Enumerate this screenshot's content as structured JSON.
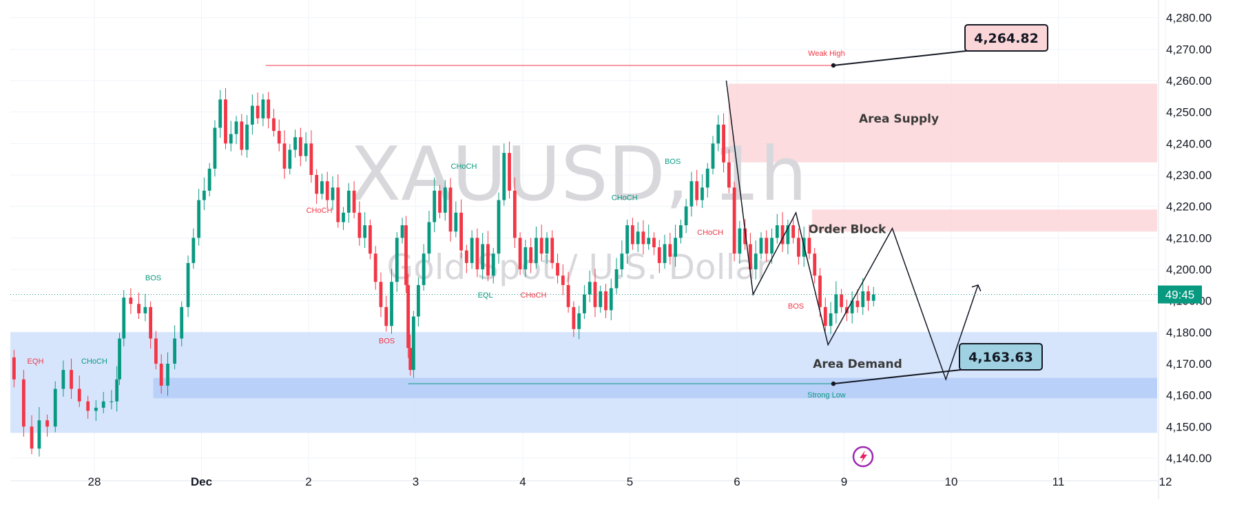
{
  "chart_data": {
    "type": "candlestick",
    "symbol": "XAUUSD, 1h",
    "subtitle": "Gold Spot / U.S. Dollar",
    "price_axis": {
      "ticks": [
        "4,280.00",
        "4,270.00",
        "4,260.00",
        "4,250.00",
        "4,240.00",
        "4,230.00",
        "4,220.00",
        "4,210.00",
        "4,200.00",
        "4,190.00",
        "4,180.00",
        "4,170.00",
        "4,160.00",
        "4,150.00",
        "4,140.00"
      ],
      "ylim": [
        4135,
        4285
      ]
    },
    "time_axis": {
      "ticks": [
        "28",
        "Dec",
        "2",
        "3",
        "4",
        "5",
        "6",
        "9",
        "10",
        "11",
        "12"
      ],
      "xlim": [
        -0.8,
        9.95
      ]
    },
    "current_price": {
      "value": 4192.0,
      "label": "49:45",
      "color": "#089981"
    },
    "candles_anchor_path": [
      [
        -0.8,
        4172
      ],
      [
        -0.7,
        4165
      ],
      [
        -0.62,
        4150
      ],
      [
        -0.55,
        4143
      ],
      [
        -0.48,
        4152
      ],
      [
        -0.4,
        4150
      ],
      [
        -0.33,
        4162
      ],
      [
        -0.25,
        4168
      ],
      [
        -0.18,
        4162
      ],
      [
        -0.1,
        4158
      ],
      [
        -0.02,
        4155
      ],
      [
        0.05,
        4156
      ],
      [
        0.12,
        4158
      ],
      [
        0.2,
        4158
      ],
      [
        0.22,
        4165
      ],
      [
        0.25,
        4178
      ],
      [
        0.3,
        4191
      ],
      [
        0.38,
        4189
      ],
      [
        0.45,
        4186
      ],
      [
        0.5,
        4188
      ],
      [
        0.55,
        4178
      ],
      [
        0.6,
        4170
      ],
      [
        0.65,
        4163
      ],
      [
        0.72,
        4170
      ],
      [
        0.78,
        4178
      ],
      [
        0.85,
        4188
      ],
      [
        0.9,
        4202
      ],
      [
        0.95,
        4210
      ],
      [
        1.0,
        4222
      ],
      [
        1.05,
        4225
      ],
      [
        1.1,
        4232
      ],
      [
        1.15,
        4245
      ],
      [
        1.2,
        4254
      ],
      [
        1.25,
        4240
      ],
      [
        1.3,
        4243
      ],
      [
        1.35,
        4247
      ],
      [
        1.4,
        4238
      ],
      [
        1.45,
        4246
      ],
      [
        1.5,
        4252
      ],
      [
        1.55,
        4248
      ],
      [
        1.6,
        4254
      ],
      [
        1.65,
        4248
      ],
      [
        1.7,
        4244
      ],
      [
        1.75,
        4240
      ],
      [
        1.8,
        4232
      ],
      [
        1.85,
        4238
      ],
      [
        1.9,
        4242
      ],
      [
        1.95,
        4236
      ],
      [
        2.0,
        4240
      ],
      [
        2.05,
        4230
      ],
      [
        2.1,
        4224
      ],
      [
        2.15,
        4228
      ],
      [
        2.2,
        4222
      ],
      [
        2.25,
        4226
      ],
      [
        2.3,
        4215
      ],
      [
        2.35,
        4218
      ],
      [
        2.4,
        4225
      ],
      [
        2.45,
        4218
      ],
      [
        2.5,
        4210
      ],
      [
        2.55,
        4214
      ],
      [
        2.6,
        4205
      ],
      [
        2.65,
        4196
      ],
      [
        2.7,
        4188
      ],
      [
        2.75,
        4182
      ],
      [
        2.8,
        4196
      ],
      [
        2.85,
        4210
      ],
      [
        2.9,
        4214
      ],
      [
        2.92,
        4195
      ],
      [
        2.94,
        4175
      ],
      [
        2.96,
        4168
      ],
      [
        3.0,
        4185
      ],
      [
        3.05,
        4195
      ],
      [
        3.1,
        4205
      ],
      [
        3.15,
        4215
      ],
      [
        3.2,
        4225
      ],
      [
        3.25,
        4218
      ],
      [
        3.3,
        4226
      ],
      [
        3.35,
        4212
      ],
      [
        3.4,
        4218
      ],
      [
        3.45,
        4206
      ],
      [
        3.5,
        4202
      ],
      [
        3.55,
        4210
      ],
      [
        3.6,
        4200
      ],
      [
        3.65,
        4208
      ],
      [
        3.7,
        4198
      ],
      [
        3.75,
        4205
      ],
      [
        3.8,
        4222
      ],
      [
        3.85,
        4237
      ],
      [
        3.9,
        4225
      ],
      [
        3.95,
        4210
      ],
      [
        4.0,
        4200
      ],
      [
        4.05,
        4207
      ],
      [
        4.1,
        4202
      ],
      [
        4.15,
        4210
      ],
      [
        4.2,
        4205
      ],
      [
        4.25,
        4210
      ],
      [
        4.3,
        4202
      ],
      [
        4.35,
        4198
      ],
      [
        4.4,
        4195
      ],
      [
        4.45,
        4188
      ],
      [
        4.5,
        4181
      ],
      [
        4.55,
        4186
      ],
      [
        4.6,
        4192
      ],
      [
        4.65,
        4196
      ],
      [
        4.7,
        4188
      ],
      [
        4.75,
        4193
      ],
      [
        4.8,
        4187
      ],
      [
        4.85,
        4194
      ],
      [
        4.9,
        4200
      ],
      [
        4.95,
        4205
      ],
      [
        5.0,
        4214
      ],
      [
        5.05,
        4208
      ],
      [
        5.1,
        4212
      ],
      [
        5.15,
        4208
      ],
      [
        5.2,
        4210
      ],
      [
        5.25,
        4207
      ],
      [
        5.3,
        4202
      ],
      [
        5.35,
        4208
      ],
      [
        5.4,
        4204
      ],
      [
        5.45,
        4210
      ],
      [
        5.5,
        4214
      ],
      [
        5.55,
        4220
      ],
      [
        5.6,
        4228
      ],
      [
        5.65,
        4222
      ],
      [
        5.7,
        4226
      ],
      [
        5.75,
        4232
      ],
      [
        5.8,
        4240
      ],
      [
        5.85,
        4246
      ],
      [
        5.9,
        4234
      ],
      [
        5.95,
        4226
      ],
      [
        6.0,
        4205
      ],
      [
        6.05,
        4213
      ],
      [
        6.1,
        4208
      ],
      [
        6.15,
        4200
      ],
      [
        6.2,
        4205
      ],
      [
        6.25,
        4210
      ],
      [
        6.3,
        4205
      ],
      [
        6.35,
        4210
      ],
      [
        6.4,
        4214
      ],
      [
        6.45,
        4208
      ],
      [
        6.5,
        4214
      ],
      [
        6.55,
        4210
      ],
      [
        6.6,
        4204
      ],
      [
        6.65,
        4210
      ],
      [
        6.7,
        4205
      ],
      [
        6.75,
        4198
      ],
      [
        6.8,
        4188
      ],
      [
        6.85,
        4182
      ],
      [
        6.9,
        4186
      ],
      [
        6.95,
        4192
      ],
      [
        7.0,
        4188
      ],
      [
        7.05,
        4186
      ],
      [
        7.1,
        4190
      ],
      [
        7.15,
        4188
      ],
      [
        7.2,
        4193
      ],
      [
        7.25,
        4190
      ],
      [
        7.3,
        4192
      ]
    ],
    "zones": [
      {
        "name": "Area Supply",
        "top": 4259,
        "bottom": 4234,
        "color": "#fbd6d8"
      },
      {
        "name": "Order Block",
        "top": 4219,
        "bottom": 4212,
        "color": "#fbd6d8"
      },
      {
        "name": "Area Demand",
        "top": 4180,
        "bottom": 4148,
        "color": "#cfe0fb"
      },
      {
        "name": "",
        "top": 4165.5,
        "bottom": 4159,
        "color": "#b4cdf8"
      }
    ],
    "levels": [
      {
        "label": "Weak High",
        "value": 4264.82,
        "x_from": 1.6,
        "x_to": 6.9,
        "color": "#f23645"
      },
      {
        "label": "Strong Low",
        "value": 4163.63,
        "x_from": 2.93,
        "x_to": 6.9,
        "color": "#089981"
      }
    ],
    "callouts": [
      {
        "text": "4,264.82",
        "style": "pink",
        "at_x": 6.9,
        "at_y": 4264.82
      },
      {
        "text": "4,163.63",
        "style": "blue",
        "at_x": 6.9,
        "at_y": 4163.63
      }
    ],
    "structure_labels": [
      {
        "text": "EQH",
        "x": -0.55,
        "y": 4170,
        "color": "#f23645"
      },
      {
        "text": "CHoCH",
        "x": 0.0,
        "y": 4170,
        "color": "#089981"
      },
      {
        "text": "BOS",
        "x": 0.55,
        "y": 4196.5,
        "color": "#089981"
      },
      {
        "text": "CHoCH",
        "x": 2.1,
        "y": 4218,
        "color": "#f23645"
      },
      {
        "text": "BOS",
        "x": 2.73,
        "y": 4176.5,
        "color": "#f23645"
      },
      {
        "text": "CHoCH",
        "x": 3.45,
        "y": 4232,
        "color": "#089981"
      },
      {
        "text": "EQL",
        "x": 3.65,
        "y": 4191,
        "color": "#089981"
      },
      {
        "text": "CHoCH",
        "x": 4.1,
        "y": 4191,
        "color": "#f23645"
      },
      {
        "text": "CHoCH",
        "x": 4.95,
        "y": 4222,
        "color": "#089981"
      },
      {
        "text": "BOS",
        "x": 5.4,
        "y": 4233.5,
        "color": "#089981"
      },
      {
        "text": "CHoCH",
        "x": 5.75,
        "y": 4211,
        "color": "#f23645"
      },
      {
        "text": "BOS",
        "x": 6.55,
        "y": 4187.5,
        "color": "#f23645"
      }
    ],
    "projection_path": [
      [
        5.9,
        4260
      ],
      [
        6.15,
        4192
      ],
      [
        6.55,
        4218
      ],
      [
        6.85,
        4176
      ],
      [
        7.45,
        4213
      ],
      [
        7.95,
        4165
      ],
      [
        8.25,
        4195
      ]
    ],
    "grid": true,
    "icons": [
      "lightning-icon"
    ]
  },
  "colors": {
    "bull": "#089981",
    "bear": "#f23645",
    "grid": "#f0f3fa",
    "text": "#131722"
  }
}
